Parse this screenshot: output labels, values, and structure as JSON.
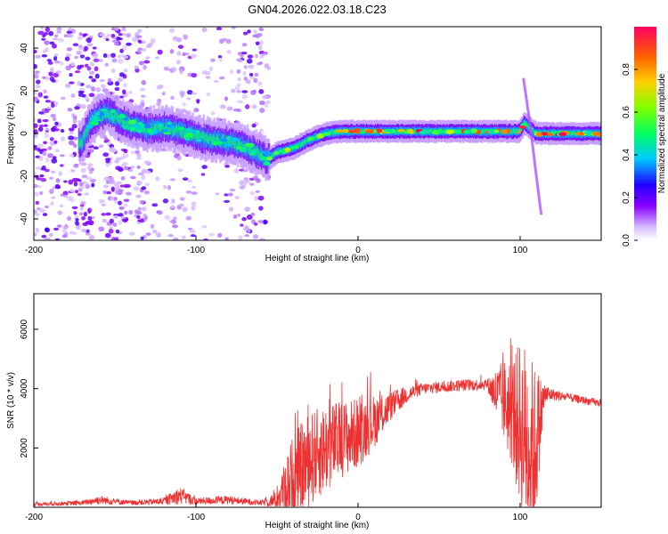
{
  "title": "GN04.2026.022.03.18.C23",
  "chart_data": [
    {
      "type": "heatmap",
      "title": "GN04.2026.022.03.18.C23",
      "xlabel": "Height of straight line (km)",
      "ylabel": "Frequency (Hz)",
      "xlim": [
        -200,
        150
      ],
      "ylim": [
        -50,
        50
      ],
      "xticks": [
        -200,
        -100,
        0,
        100
      ],
      "yticks": [
        -40,
        -20,
        0,
        20,
        40
      ],
      "colorbar": {
        "label": "Normalized spectral amplitude",
        "range": [
          0,
          1
        ],
        "ticks": [
          0.0,
          0.2,
          0.4,
          0.6,
          0.8
        ],
        "tick_labels": [
          "0.0",
          "0.2",
          "0.4",
          "0.6",
          "0.8"
        ],
        "colormap": [
          "#f0f0f0",
          "#7a00ff",
          "#2000ff",
          "#00ffff",
          "#00ff40",
          "#c0ff00",
          "#ffb000",
          "#ff0040"
        ]
      },
      "ridge": {
        "x": [
          -170,
          -165,
          -160,
          -155,
          -150,
          -140,
          -130,
          -120,
          -110,
          -100,
          -90,
          -80,
          -70,
          -60,
          -55,
          -50,
          -40,
          -30,
          -20,
          -10,
          0,
          20,
          40,
          60,
          80,
          100,
          103,
          110,
          120,
          150
        ],
        "y": [
          -4,
          5,
          8,
          10,
          8,
          4,
          2,
          3,
          1,
          -1,
          -3,
          -4,
          -6,
          -10,
          -12,
          -9,
          -7,
          -3,
          0,
          1,
          1,
          1,
          1,
          1,
          1,
          1,
          5,
          0,
          0,
          0
        ]
      },
      "streak": {
        "x": [
          102,
          106,
          110,
          113
        ],
        "y": [
          26,
          5,
          -20,
          -38
        ]
      },
      "noise_region_x": [
        -200,
        -55
      ]
    },
    {
      "type": "line",
      "xlabel": "Height of straight line (km)",
      "ylabel": "SNR (10 * v/v)",
      "xlim": [
        -200,
        150
      ],
      "ylim": [
        0,
        7200
      ],
      "xticks": [
        -200,
        -100,
        0,
        100
      ],
      "yticks": [
        2000,
        4000,
        6000
      ],
      "color": "#ef3030",
      "envelope": {
        "x": [
          -200,
          -170,
          -160,
          -140,
          -120,
          -110,
          -100,
          -80,
          -60,
          -50,
          -45,
          -40,
          -30,
          -20,
          -10,
          0,
          10,
          20,
          30,
          40,
          60,
          80,
          85,
          90,
          95,
          100,
          105,
          108,
          110,
          115,
          120,
          130,
          150
        ],
        "base": [
          100,
          150,
          250,
          150,
          200,
          400,
          200,
          250,
          150,
          250,
          700,
          1000,
          1600,
          2000,
          2300,
          2500,
          2900,
          3400,
          3800,
          4000,
          4100,
          4150,
          3800,
          3600,
          3200,
          2800,
          2200,
          1600,
          2300,
          3800,
          3800,
          3700,
          3500
        ],
        "amp": [
          60,
          80,
          150,
          80,
          120,
          300,
          120,
          150,
          80,
          300,
          900,
          1500,
          1600,
          1500,
          1300,
          1200,
          900,
          500,
          300,
          200,
          200,
          200,
          900,
          1400,
          1900,
          2800,
          3400,
          3300,
          2500,
          400,
          200,
          150,
          120
        ]
      }
    }
  ]
}
